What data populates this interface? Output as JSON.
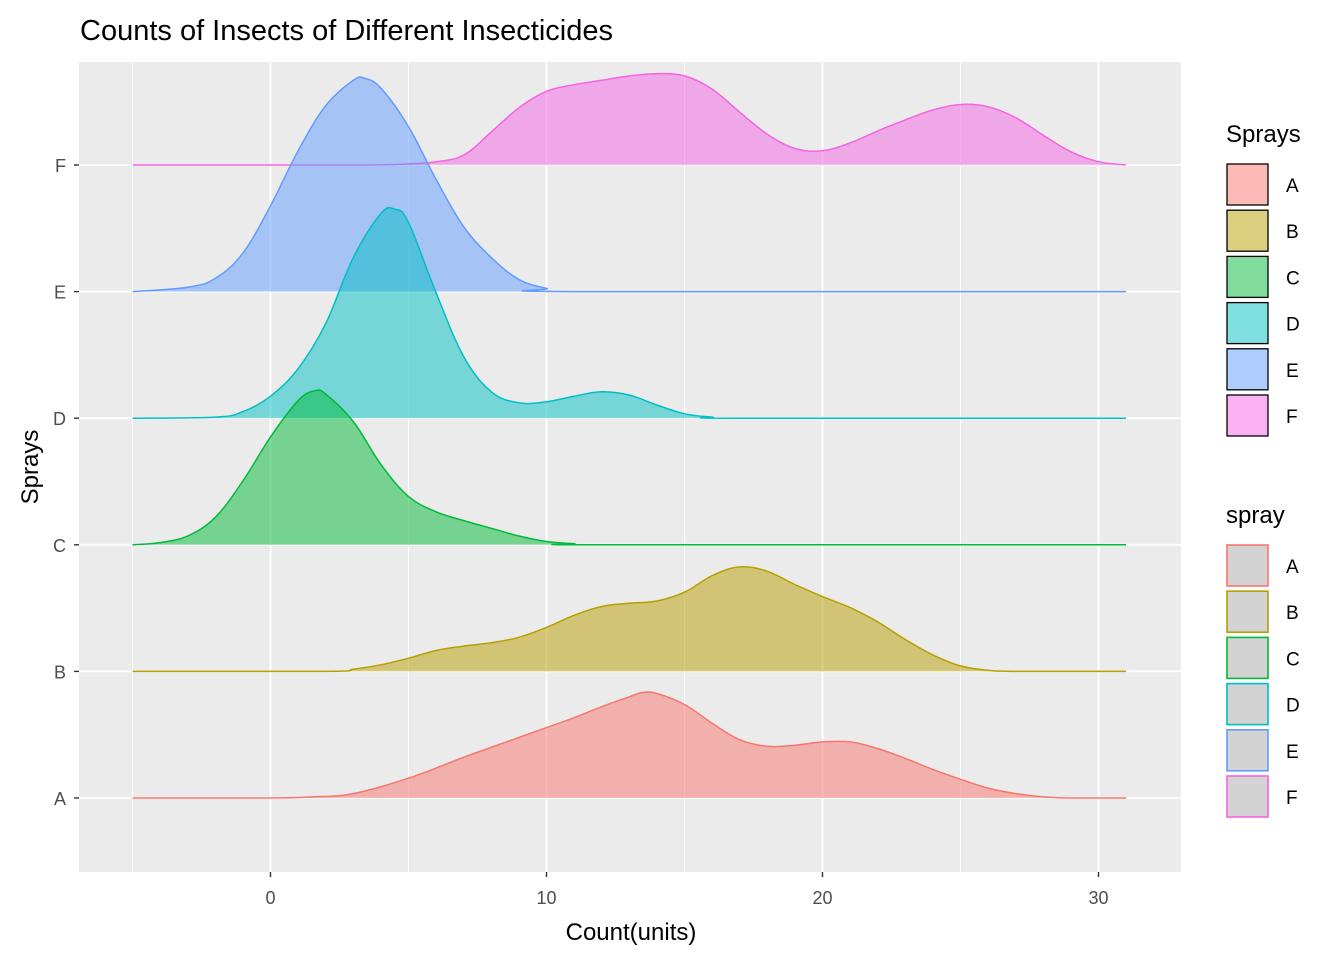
{
  "chart_data": {
    "type": "ridgeline-density",
    "title": "Counts of Insects of Different Insecticides",
    "xlabel": "Count(units)",
    "ylabel": "Sprays",
    "xlim": [
      -7,
      33
    ],
    "x_ticks": [
      0,
      10,
      20,
      30
    ],
    "x_tick_labels": [
      "0",
      "10",
      "20",
      "30"
    ],
    "categories": [
      "A",
      "B",
      "C",
      "D",
      "E",
      "F"
    ],
    "grid": true,
    "legend_placement": "right",
    "legends": [
      {
        "title": "Sprays",
        "kind": "fill",
        "items": [
          {
            "label": "A",
            "color": "#F8766D"
          },
          {
            "label": "B",
            "color": "#B79F00"
          },
          {
            "label": "C",
            "color": "#00BA38"
          },
          {
            "label": "D",
            "color": "#00BFC4"
          },
          {
            "label": "E",
            "color": "#619CFF"
          },
          {
            "label": "F",
            "color": "#F564E3"
          }
        ]
      },
      {
        "title": "spray",
        "kind": "outline",
        "items": [
          {
            "label": "A",
            "color": "#F8766D"
          },
          {
            "label": "B",
            "color": "#B79F00"
          },
          {
            "label": "C",
            "color": "#00BA38"
          },
          {
            "label": "D",
            "color": "#00BFC4"
          },
          {
            "label": "E",
            "color": "#619CFF"
          },
          {
            "label": "F",
            "color": "#F564E3"
          }
        ]
      }
    ],
    "series": [
      {
        "name": "A",
        "color": "#F8766D",
        "x": [
          -5,
          0,
          1.5,
          3,
          5,
          7,
          9,
          10,
          11,
          12,
          13,
          13.5,
          14,
          15,
          16,
          17,
          18,
          19,
          20,
          21,
          22,
          23,
          24,
          25,
          26,
          27,
          28,
          29,
          31
        ],
        "y": [
          0,
          0,
          0.01,
          0.04,
          0.18,
          0.37,
          0.55,
          0.64,
          0.73,
          0.83,
          0.92,
          0.96,
          0.95,
          0.85,
          0.68,
          0.53,
          0.47,
          0.48,
          0.51,
          0.51,
          0.45,
          0.36,
          0.26,
          0.17,
          0.09,
          0.04,
          0.01,
          0,
          0
        ]
      },
      {
        "name": "B",
        "color": "#B79F00",
        "x": [
          -5,
          2,
          3,
          4,
          5,
          6,
          7,
          8,
          9,
          10,
          11,
          12,
          13,
          14,
          15,
          16,
          17,
          18,
          19,
          20,
          21,
          22,
          23,
          24,
          25,
          26,
          27,
          31
        ],
        "y": [
          0,
          0,
          0.02,
          0.06,
          0.12,
          0.19,
          0.23,
          0.26,
          0.31,
          0.4,
          0.51,
          0.59,
          0.62,
          0.64,
          0.72,
          0.87,
          0.95,
          0.91,
          0.79,
          0.68,
          0.58,
          0.45,
          0.29,
          0.15,
          0.05,
          0.01,
          0,
          0
        ]
      },
      {
        "name": "C",
        "color": "#00BA38",
        "x": [
          -5,
          -4,
          -3,
          -2,
          -1,
          0,
          1,
          1.6,
          2,
          3,
          4,
          5,
          6,
          7,
          8,
          9,
          10,
          11,
          12,
          31
        ],
        "y": [
          0,
          0.02,
          0.08,
          0.25,
          0.58,
          0.98,
          1.31,
          1.4,
          1.37,
          1.12,
          0.73,
          0.44,
          0.3,
          0.22,
          0.15,
          0.08,
          0.03,
          0.01,
          0,
          0
        ]
      },
      {
        "name": "D",
        "color": "#00BFC4",
        "x": [
          -5,
          -2,
          -1,
          0,
          1,
          2,
          3,
          4,
          4.5,
          5,
          6,
          7,
          8,
          9,
          10,
          11,
          12,
          13,
          14,
          15,
          16,
          17,
          31
        ],
        "y": [
          0,
          0.01,
          0.06,
          0.2,
          0.45,
          0.86,
          1.46,
          1.86,
          1.9,
          1.78,
          1.14,
          0.56,
          0.24,
          0.14,
          0.15,
          0.2,
          0.24,
          0.21,
          0.12,
          0.04,
          0.01,
          0,
          0
        ]
      },
      {
        "name": "E",
        "color": "#619CFF",
        "x": [
          -5,
          -3,
          -2,
          -1,
          0,
          1,
          2,
          3,
          3.4,
          4,
          5,
          6,
          7,
          8,
          9,
          10,
          11,
          31
        ],
        "y": [
          0,
          0.04,
          0.12,
          0.35,
          0.78,
          1.28,
          1.69,
          1.92,
          1.94,
          1.85,
          1.5,
          1.02,
          0.59,
          0.31,
          0.11,
          0.03,
          0,
          0
        ]
      },
      {
        "name": "F",
        "color": "#F564E3",
        "x": [
          -5,
          3,
          5,
          6,
          7,
          8,
          9,
          10,
          11,
          12,
          13,
          14,
          15,
          16,
          17,
          18,
          19,
          20,
          21,
          22,
          23,
          24,
          25,
          26,
          27,
          28,
          29,
          30,
          31
        ],
        "y": [
          0,
          0,
          0.01,
          0.03,
          0.09,
          0.3,
          0.52,
          0.67,
          0.73,
          0.77,
          0.81,
          0.83,
          0.81,
          0.69,
          0.48,
          0.28,
          0.15,
          0.13,
          0.2,
          0.31,
          0.41,
          0.5,
          0.55,
          0.53,
          0.43,
          0.27,
          0.12,
          0.03,
          0
        ]
      }
    ]
  }
}
